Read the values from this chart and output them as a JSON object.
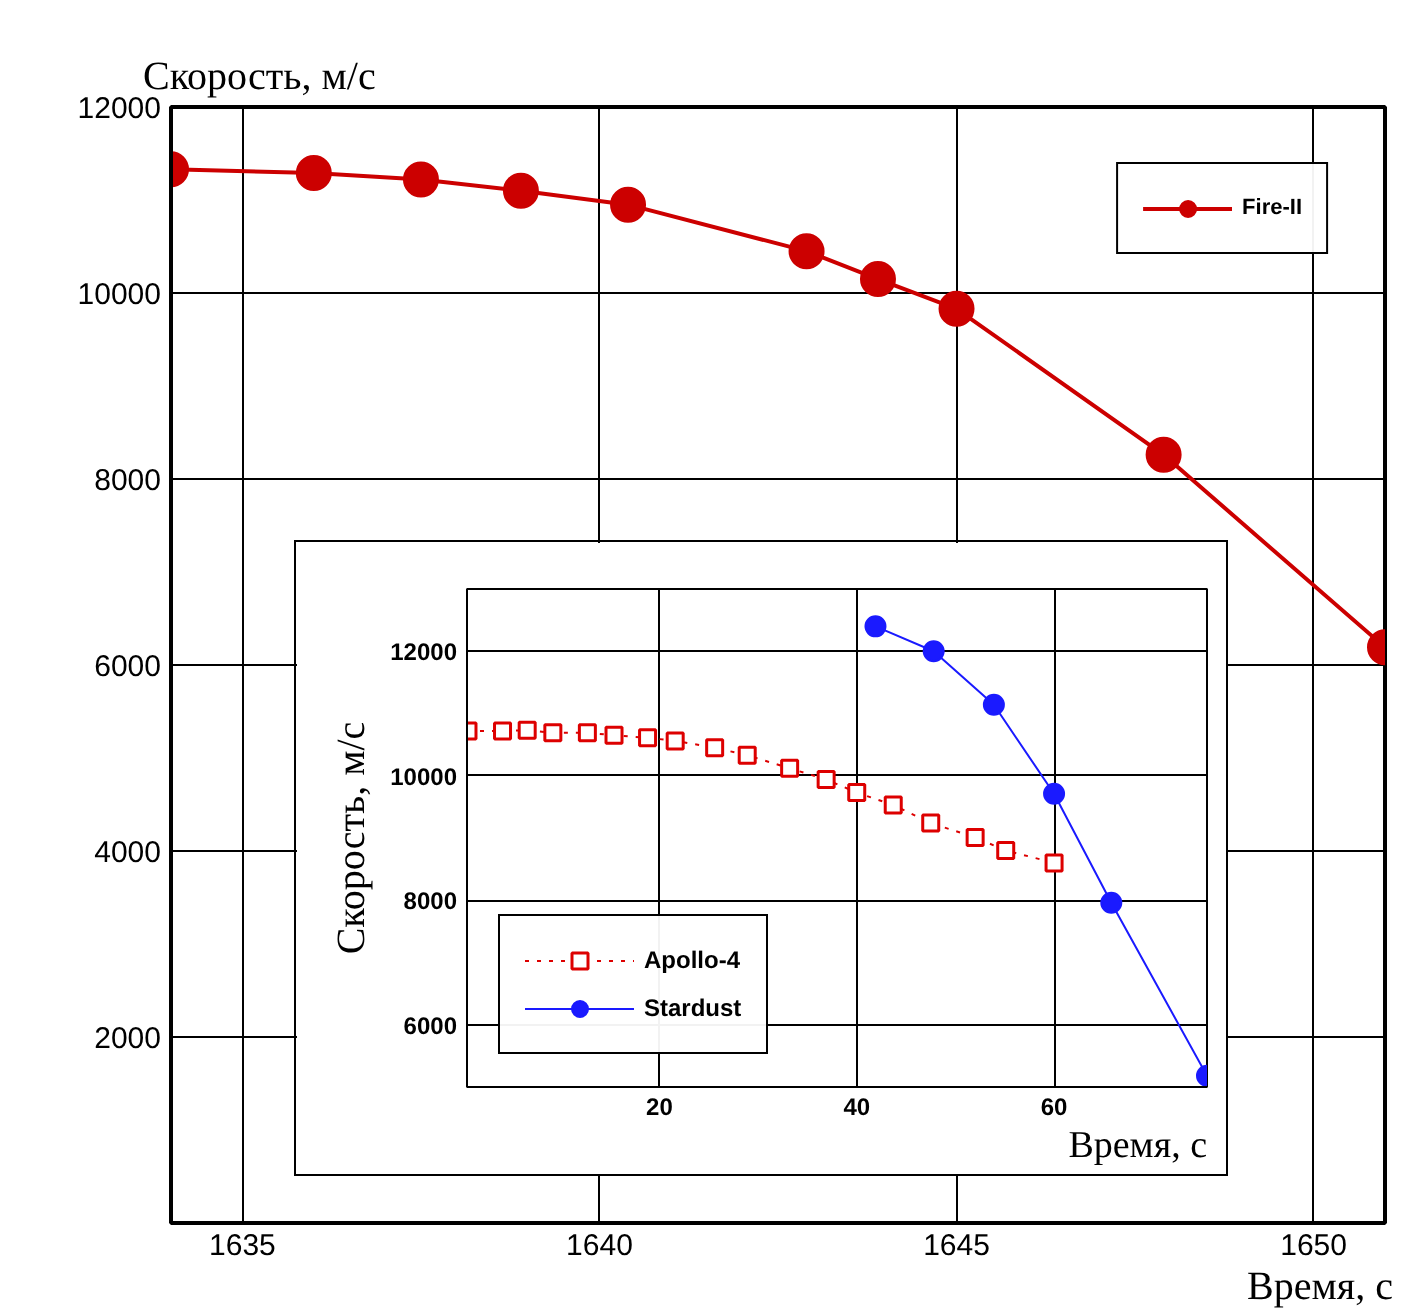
{
  "chart_data": [
    {
      "type": "line",
      "xlabel": "Время, с",
      "ylabel": "Скорость, м/с",
      "xlim": [
        1634,
        1651
      ],
      "ylim": [
        0,
        12000
      ],
      "xticks": [
        1635,
        1640,
        1645,
        1650
      ],
      "yticks": [
        2000,
        4000,
        6000,
        8000,
        10000,
        12000
      ],
      "grid": true,
      "legend": "top right",
      "marker": "circle",
      "line_style": "solid",
      "x": [
        1634.0,
        1636.0,
        1637.5,
        1638.9,
        1640.4,
        1642.9,
        1643.9,
        1645.0,
        1647.9,
        1651.0
      ],
      "series": [
        {
          "name": "Fire-II",
          "color": "#cc0000",
          "values": [
            11330,
            11290,
            11220,
            11100,
            10950,
            10450,
            10150,
            9830,
            8260,
            6190
          ]
        }
      ]
    },
    {
      "type": "line",
      "xlabel": "Время, с",
      "ylabel": "Скорость, м/с",
      "xlim": [
        0.5,
        75.5
      ],
      "ylim": [
        5000,
        13000
      ],
      "xticks": [
        20,
        40,
        60
      ],
      "yticks": [
        6000,
        8000,
        10000,
        12000
      ],
      "grid": true,
      "legend": "bottom left",
      "series": [
        {
          "name": "Apollo-4",
          "color": "#dd0000",
          "marker": "square",
          "line_style": "dotted",
          "x": [
            0.6,
            4.1,
            6.6,
            9.2,
            12.7,
            15.4,
            18.8,
            21.6,
            25.6,
            28.9,
            33.2,
            36.9,
            40.0,
            43.7,
            47.5,
            52.0,
            55.1,
            60.0
          ],
          "values": [
            10720,
            10720,
            10730,
            10690,
            10690,
            10650,
            10610,
            10560,
            10450,
            10330,
            10120,
            9940,
            9730,
            9530,
            9240,
            9010,
            8800,
            8600
          ]
        },
        {
          "name": "Stardust",
          "color": "#1a1aff",
          "marker": "circle",
          "line_style": "solid",
          "x": [
            41.9,
            47.8,
            53.9,
            60.0,
            65.8,
            75.5
          ],
          "values": [
            12400,
            12000,
            11140,
            9710,
            7960,
            5180
          ]
        }
      ]
    }
  ]
}
